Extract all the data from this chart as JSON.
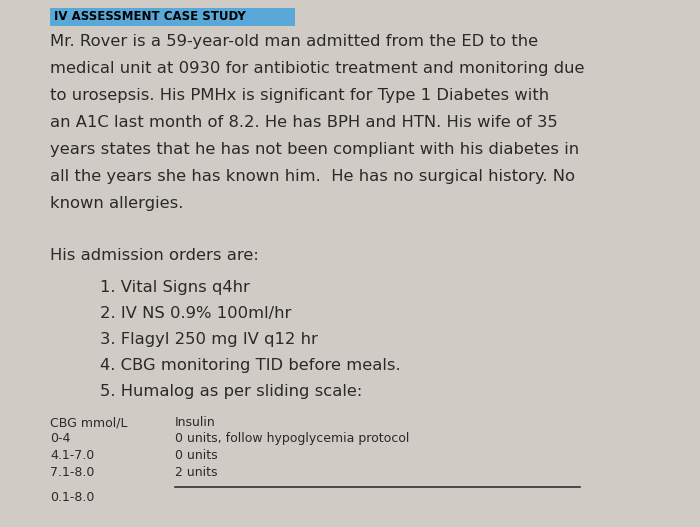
{
  "background_color": "#d0ccc5",
  "header_text": "IV ASSESSMENT CASE STUDY",
  "header_bg": "#5aA8d8",
  "header_color": "#000000",
  "body_lines": [
    "Mr. Rover is a 59-year-old man admitted from the ED to the",
    "medical unit at 0930 for antibiotic treatment and monitoring due",
    "to urosepsis. His PMHx is significant for Type 1 Diabetes with",
    "an A1C last month of 8.2. He has BPH and HTN. His wife of 35",
    "years states that he has not been compliant with his diabetes in",
    "all the years she has known him.  He has no surgical history. No",
    "known allergies."
  ],
  "orders_intro": "His admission orders are:",
  "orders": [
    "1. Vital Signs q4hr",
    "2. IV NS 0.9% 100ml/hr",
    "3. Flagyl 250 mg IV q12 hr",
    "4. CBG monitoring TID before meals.",
    "5. Humalog as per sliding scale:"
  ],
  "table_header_col1": "CBG mmol/L",
  "table_header_col2": "Insulin",
  "table_rows": [
    [
      "0-4",
      "0 units, follow hypoglycemia protocol"
    ],
    [
      "4.1-7.0",
      "0 units"
    ],
    [
      "7.1-8.0",
      "2 units"
    ]
  ],
  "bottom_partial": "0.1-8.0",
  "text_color": "#2a2a2a",
  "body_fontsize": 11.8,
  "header_fontsize": 8.5,
  "table_fontsize": 9.0,
  "orders_fontsize": 11.8,
  "intro_fontsize": 11.8
}
